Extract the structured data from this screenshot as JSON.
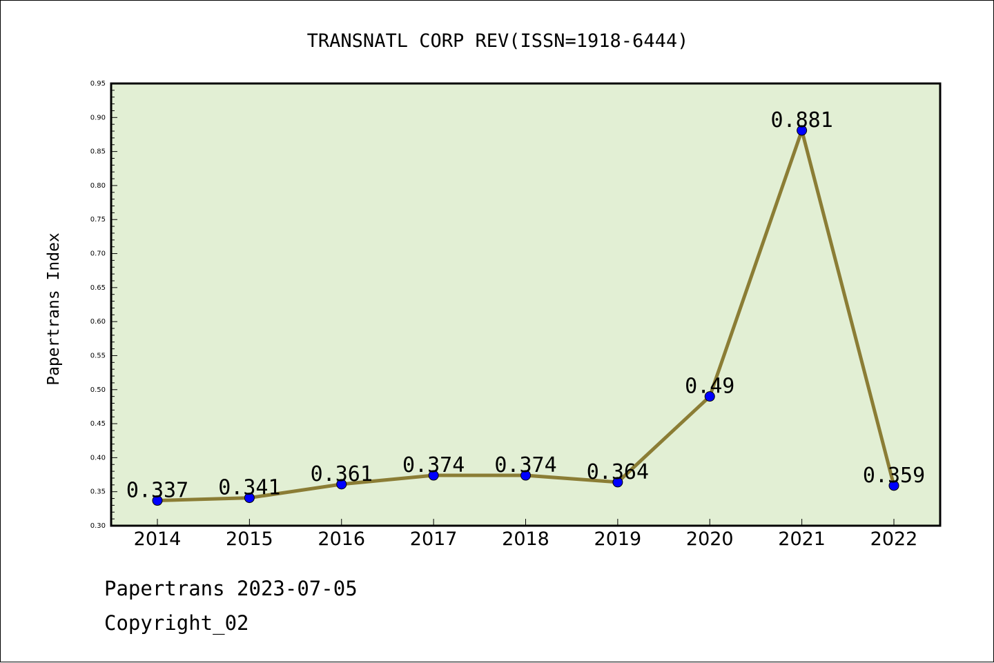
{
  "chart_data": {
    "type": "line",
    "title": "TRANSNATL CORP REV(ISSN=1918-6444)",
    "xlabel": "",
    "ylabel": "Papertrans Index",
    "categories": [
      "2014",
      "2015",
      "2016",
      "2017",
      "2018",
      "2019",
      "2020",
      "2021",
      "2022"
    ],
    "series": [
      {
        "values": [
          0.337,
          0.341,
          0.361,
          0.374,
          0.374,
          0.364,
          0.49,
          0.881,
          0.359
        ],
        "labels": [
          "0.337",
          "0.341",
          "0.361",
          "0.374",
          "0.374",
          "0.364",
          "0.49",
          "0.881",
          "0.359"
        ]
      }
    ],
    "ylim": [
      0.3,
      0.95
    ],
    "yticks": [
      "0.30",
      "0.35",
      "0.40",
      "0.45",
      "0.50",
      "0.55",
      "0.60",
      "0.65",
      "0.70",
      "0.75",
      "0.80",
      "0.85",
      "0.90",
      "0.95"
    ],
    "grid": false,
    "legend": "none",
    "colors": {
      "plot_background": "#e2efd4",
      "line": "#8b7d35",
      "marker": "#0000ff",
      "axis": "#000000"
    }
  },
  "footer": {
    "date_line": "Papertrans 2023-07-05",
    "copyright": "Copyright_02"
  }
}
